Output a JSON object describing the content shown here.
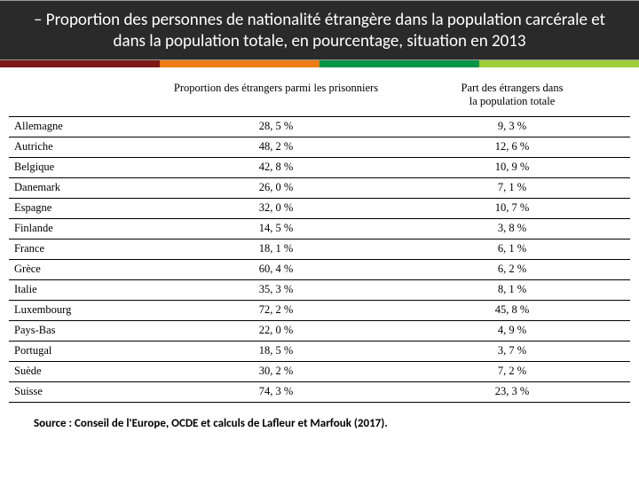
{
  "title": "– Proportion des personnes de nationalité étrangère dans la population carcérale et dans la population totale, en pourcentage, situation en 2013",
  "accent_colors": [
    "#7c1818",
    "#ee7b15",
    "#099447",
    "#9fce3a"
  ],
  "columns": {
    "country": "",
    "prisoners": "Proportion des étrangers parmi les prisonniers",
    "population": "Part des étrangers dans\nla population totale"
  },
  "rows": [
    {
      "country": "Allemagne",
      "prisoners": "28, 5 %",
      "population": "9, 3 %"
    },
    {
      "country": "Autriche",
      "prisoners": "48, 2 %",
      "population": "12, 6 %"
    },
    {
      "country": "Belgique",
      "prisoners": "42, 8 %",
      "population": "10, 9 %"
    },
    {
      "country": "Danemark",
      "prisoners": "26, 0 %",
      "population": "7, 1 %"
    },
    {
      "country": "Espagne",
      "prisoners": "32, 0 %",
      "population": "10, 7 %"
    },
    {
      "country": "Finlande",
      "prisoners": "14, 5 %",
      "population": "3, 8 %"
    },
    {
      "country": "France",
      "prisoners": "18, 1 %",
      "population": "6, 1 %"
    },
    {
      "country": "Grèce",
      "prisoners": "60, 4 %",
      "population": "6, 2 %"
    },
    {
      "country": "Italie",
      "prisoners": "35, 3 %",
      "population": "8, 1 %"
    },
    {
      "country": "Luxembourg",
      "prisoners": "72, 2 %",
      "population": "45, 8 %"
    },
    {
      "country": "Pays-Bas",
      "prisoners": "22, 0 %",
      "population": "4, 9 %"
    },
    {
      "country": "Portugal",
      "prisoners": "18, 5 %",
      "population": "3, 7 %"
    },
    {
      "country": "Suède",
      "prisoners": "30, 2 %",
      "population": "7, 2 %"
    },
    {
      "country": "Suisse",
      "prisoners": "74, 3 %",
      "population": "23, 3 %"
    }
  ],
  "source": "Source : Conseil de l'Europe, OCDE et calculs de Lafleur et Marfouk (2017)."
}
